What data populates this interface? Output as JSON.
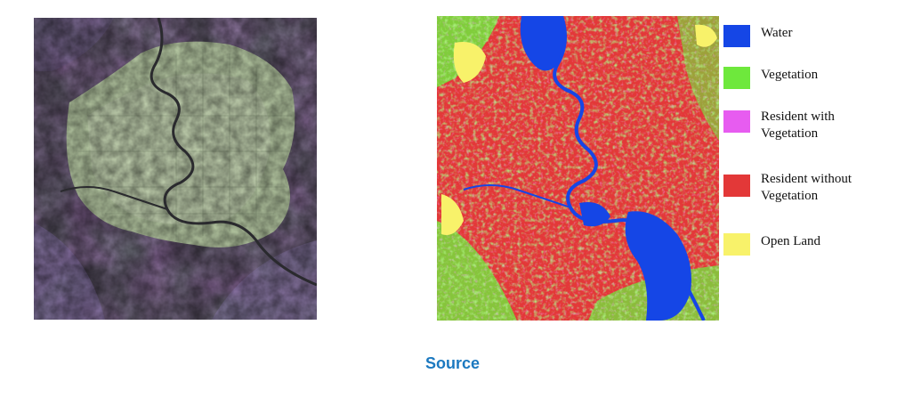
{
  "legend": {
    "items": [
      {
        "label": "Water",
        "color": "#1546e6"
      },
      {
        "label": "Vegetation",
        "color": "#6ee83c"
      },
      {
        "label": "Resident with\n Vegetation",
        "color": "#e75cf0"
      },
      {
        "label": "Resident without\nVegetation",
        "color": "#e33838"
      },
      {
        "label": "Open Land",
        "color": "#f8f26a"
      }
    ]
  },
  "link": {
    "source_label": "Source"
  },
  "colors": {
    "water": "#1546e6",
    "vegetation": "#6ee83c",
    "resident_with_vegetation": "#e75cf0",
    "resident_without_vegetation": "#e33838",
    "open_land": "#f8f26a",
    "link": "#1c79c0"
  }
}
